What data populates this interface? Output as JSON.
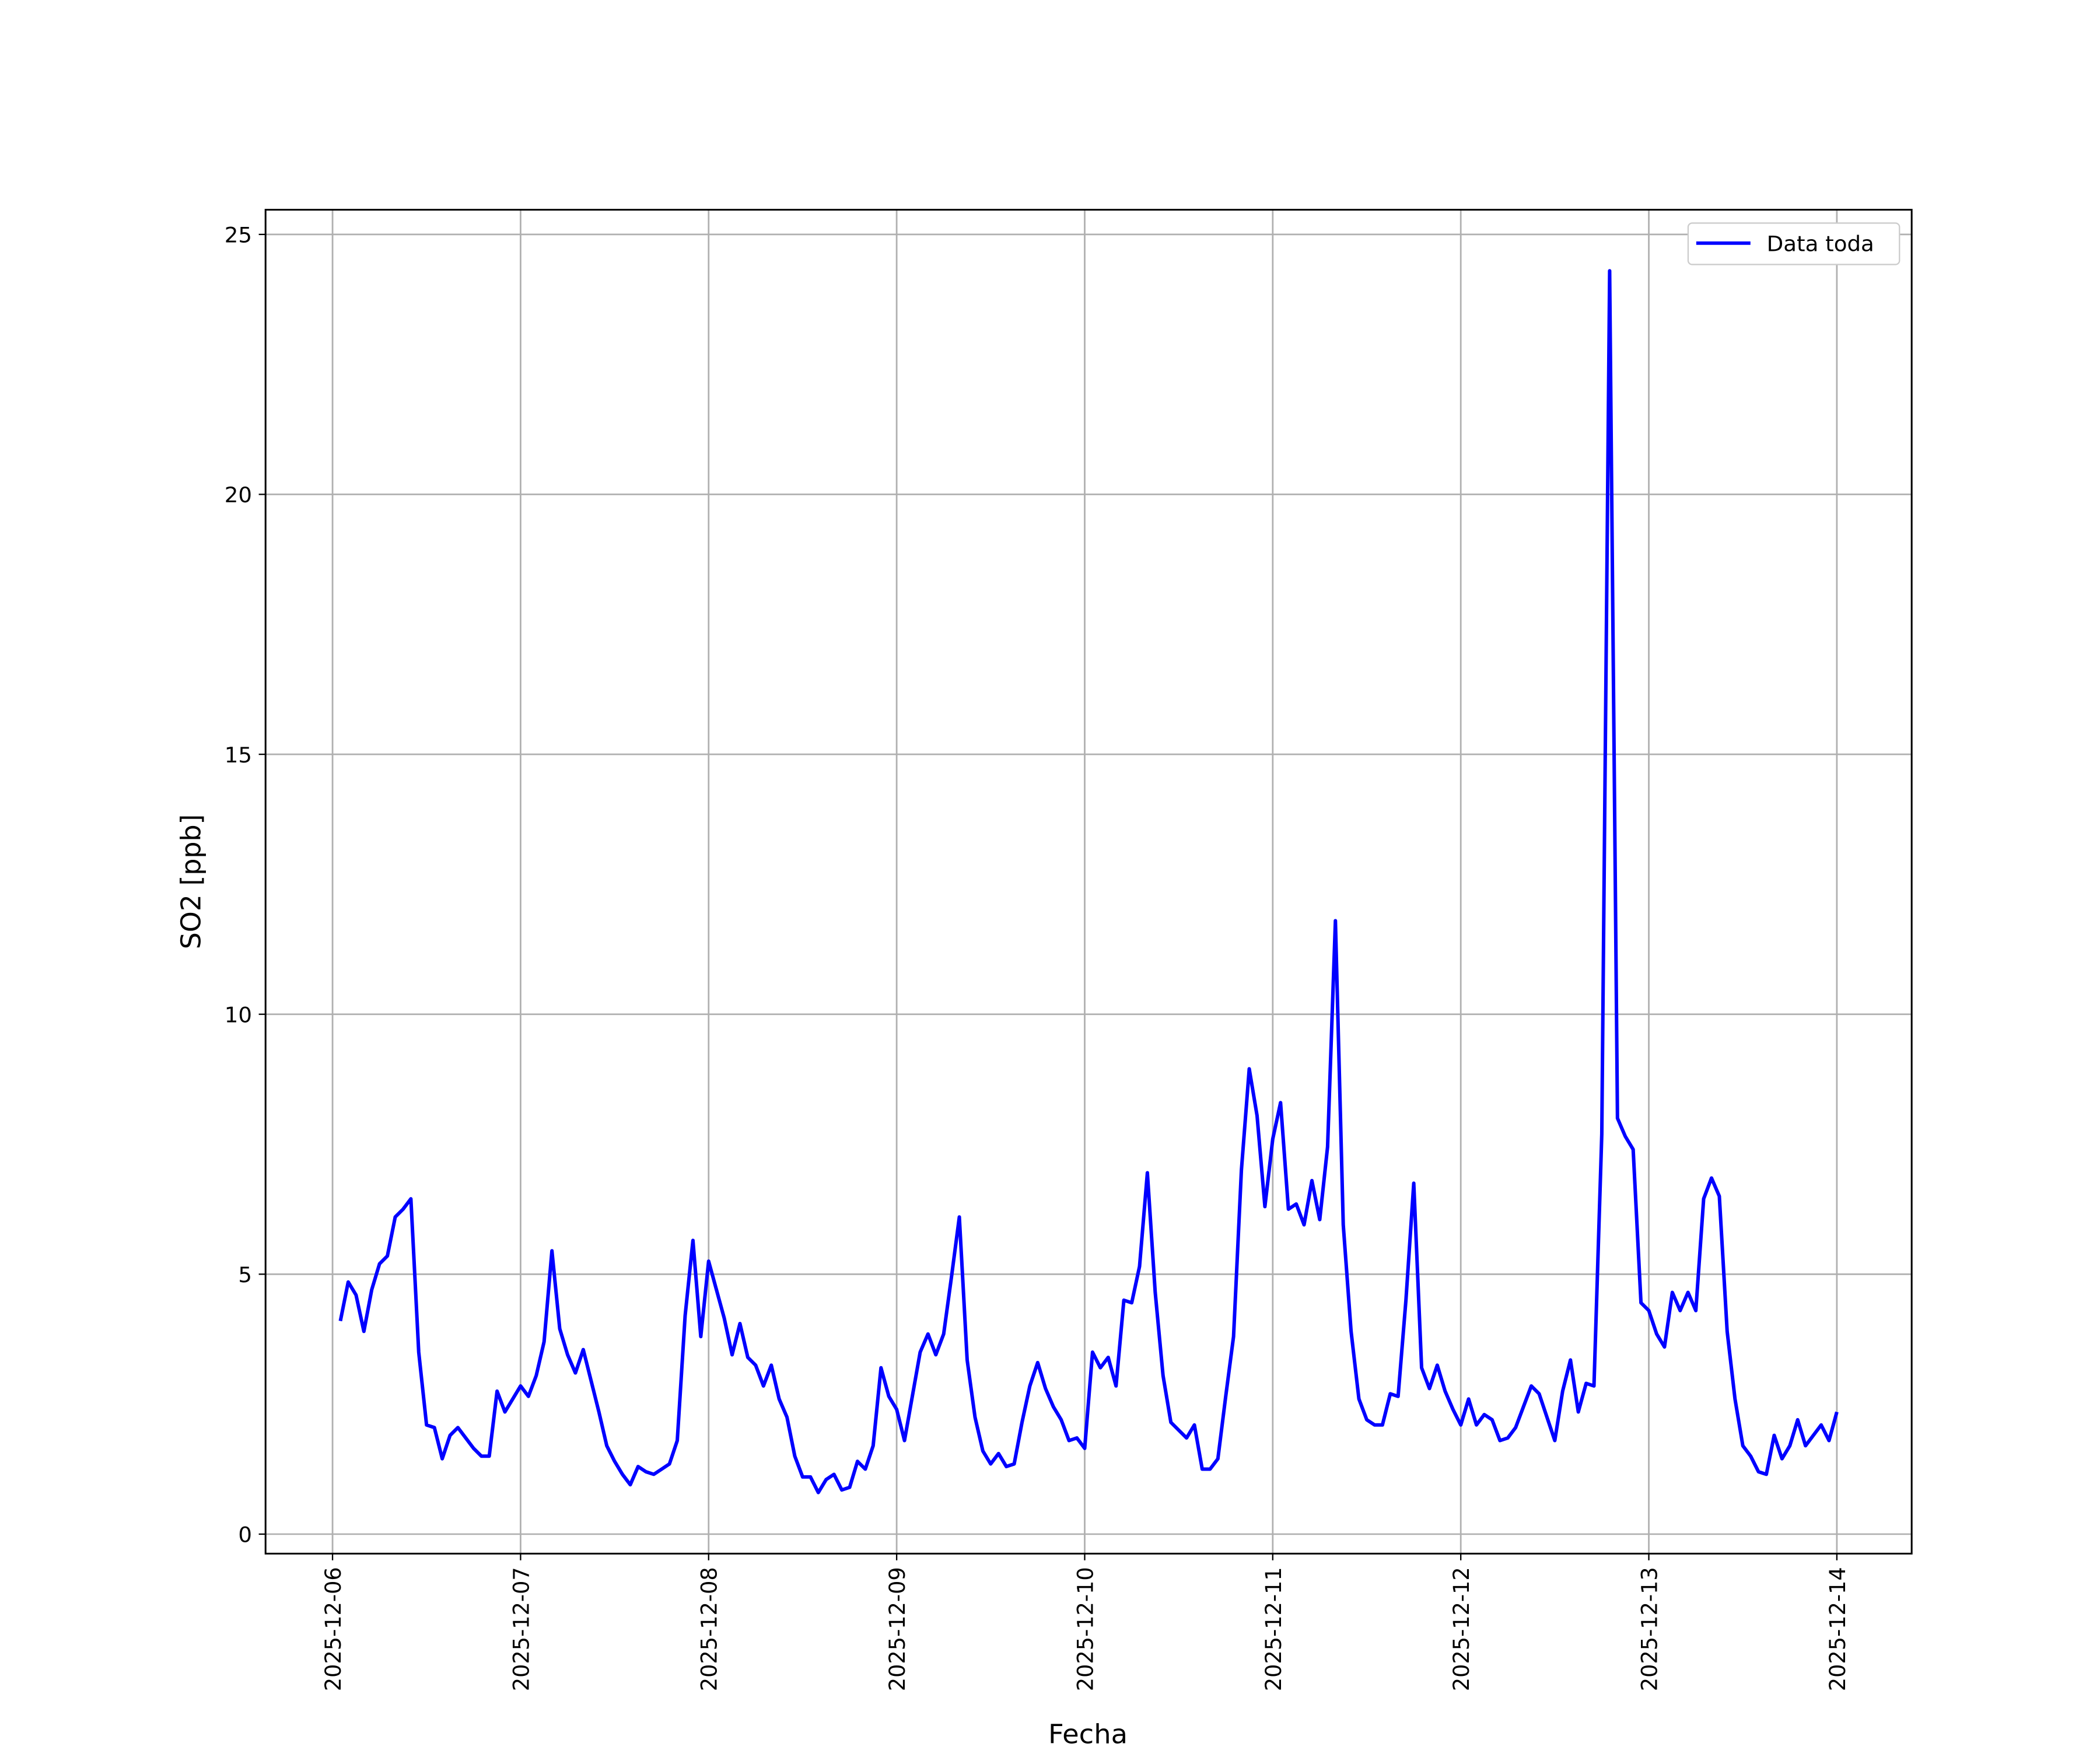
{
  "chart_data": {
    "type": "line",
    "xlabel": "Fecha",
    "ylabel": "SO2 [ppb]",
    "x": [
      "2025-12-06T01:00",
      "2025-12-06T02:00",
      "2025-12-06T03:00",
      "2025-12-06T04:00",
      "2025-12-06T05:00",
      "2025-12-06T06:00",
      "2025-12-06T07:00",
      "2025-12-06T08:00",
      "2025-12-06T09:00",
      "2025-12-06T10:00",
      "2025-12-06T11:00",
      "2025-12-06T12:00",
      "2025-12-06T13:00",
      "2025-12-06T14:00",
      "2025-12-06T15:00",
      "2025-12-06T16:00",
      "2025-12-06T17:00",
      "2025-12-06T18:00",
      "2025-12-06T19:00",
      "2025-12-06T20:00",
      "2025-12-06T21:00",
      "2025-12-06T22:00",
      "2025-12-06T23:00",
      "2025-12-07T00:00",
      "2025-12-07T01:00",
      "2025-12-07T02:00",
      "2025-12-07T03:00",
      "2025-12-07T04:00",
      "2025-12-07T05:00",
      "2025-12-07T06:00",
      "2025-12-07T07:00",
      "2025-12-07T08:00",
      "2025-12-07T09:00",
      "2025-12-07T10:00",
      "2025-12-07T11:00",
      "2025-12-07T12:00",
      "2025-12-07T13:00",
      "2025-12-07T14:00",
      "2025-12-07T15:00",
      "2025-12-07T16:00",
      "2025-12-07T17:00",
      "2025-12-07T18:00",
      "2025-12-07T19:00",
      "2025-12-07T20:00",
      "2025-12-07T21:00",
      "2025-12-07T22:00",
      "2025-12-07T23:00",
      "2025-12-08T00:00",
      "2025-12-08T01:00",
      "2025-12-08T02:00",
      "2025-12-08T03:00",
      "2025-12-08T04:00",
      "2025-12-08T05:00",
      "2025-12-08T06:00",
      "2025-12-08T07:00",
      "2025-12-08T08:00",
      "2025-12-08T09:00",
      "2025-12-08T10:00",
      "2025-12-08T11:00",
      "2025-12-08T12:00",
      "2025-12-08T13:00",
      "2025-12-08T14:00",
      "2025-12-08T15:00",
      "2025-12-08T16:00",
      "2025-12-08T17:00",
      "2025-12-08T18:00",
      "2025-12-08T19:00",
      "2025-12-08T20:00",
      "2025-12-08T21:00",
      "2025-12-08T22:00",
      "2025-12-08T23:00",
      "2025-12-09T00:00",
      "2025-12-09T01:00",
      "2025-12-09T02:00",
      "2025-12-09T03:00",
      "2025-12-09T04:00",
      "2025-12-09T05:00",
      "2025-12-09T06:00",
      "2025-12-09T07:00",
      "2025-12-09T08:00",
      "2025-12-09T09:00",
      "2025-12-09T10:00",
      "2025-12-09T11:00",
      "2025-12-09T12:00",
      "2025-12-09T13:00",
      "2025-12-09T14:00",
      "2025-12-09T15:00",
      "2025-12-09T16:00",
      "2025-12-09T17:00",
      "2025-12-09T18:00",
      "2025-12-09T19:00",
      "2025-12-09T20:00",
      "2025-12-09T21:00",
      "2025-12-09T22:00",
      "2025-12-09T23:00",
      "2025-12-10T00:00",
      "2025-12-10T01:00",
      "2025-12-10T02:00",
      "2025-12-10T03:00",
      "2025-12-10T04:00",
      "2025-12-10T05:00",
      "2025-12-10T06:00",
      "2025-12-10T07:00",
      "2025-12-10T08:00",
      "2025-12-10T09:00",
      "2025-12-10T10:00",
      "2025-12-10T11:00",
      "2025-12-10T12:00",
      "2025-12-10T13:00",
      "2025-12-10T14:00",
      "2025-12-10T15:00",
      "2025-12-10T16:00",
      "2025-12-10T17:00",
      "2025-12-10T18:00",
      "2025-12-10T19:00",
      "2025-12-10T20:00",
      "2025-12-10T21:00",
      "2025-12-10T22:00",
      "2025-12-10T23:00",
      "2025-12-11T00:00",
      "2025-12-11T01:00",
      "2025-12-11T02:00",
      "2025-12-11T03:00",
      "2025-12-11T04:00",
      "2025-12-11T05:00",
      "2025-12-11T06:00",
      "2025-12-11T07:00",
      "2025-12-11T08:00",
      "2025-12-11T09:00",
      "2025-12-11T10:00",
      "2025-12-11T11:00",
      "2025-12-11T12:00",
      "2025-12-11T13:00",
      "2025-12-11T14:00",
      "2025-12-11T15:00",
      "2025-12-11T16:00",
      "2025-12-11T17:00",
      "2025-12-11T18:00",
      "2025-12-11T19:00",
      "2025-12-11T20:00",
      "2025-12-11T21:00",
      "2025-12-11T22:00",
      "2025-12-11T23:00",
      "2025-12-12T00:00",
      "2025-12-12T01:00",
      "2025-12-12T02:00",
      "2025-12-12T03:00",
      "2025-12-12T04:00",
      "2025-12-12T05:00",
      "2025-12-12T06:00",
      "2025-12-12T07:00",
      "2025-12-12T08:00",
      "2025-12-12T09:00",
      "2025-12-12T10:00",
      "2025-12-12T11:00",
      "2025-12-12T12:00",
      "2025-12-12T13:00",
      "2025-12-12T14:00",
      "2025-12-12T15:00",
      "2025-12-12T16:00",
      "2025-12-12T17:00",
      "2025-12-12T18:00",
      "2025-12-12T19:00",
      "2025-12-12T20:00",
      "2025-12-12T21:00",
      "2025-12-12T22:00",
      "2025-12-12T23:00",
      "2025-12-13T00:00",
      "2025-12-13T01:00",
      "2025-12-13T02:00",
      "2025-12-13T03:00",
      "2025-12-13T04:00",
      "2025-12-13T05:00",
      "2025-12-13T06:00",
      "2025-12-13T07:00",
      "2025-12-13T08:00",
      "2025-12-13T09:00",
      "2025-12-13T10:00",
      "2025-12-13T11:00",
      "2025-12-13T12:00",
      "2025-12-13T13:00",
      "2025-12-13T14:00",
      "2025-12-13T15:00",
      "2025-12-13T16:00",
      "2025-12-13T17:00",
      "2025-12-13T18:00",
      "2025-12-13T19:00",
      "2025-12-13T20:00",
      "2025-12-13T21:00",
      "2025-12-13T22:00",
      "2025-12-13T23:00",
      "2025-12-14T00:00"
    ],
    "series": [
      {
        "name": "Data toda",
        "color": "#0000ff",
        "values": [
          4.1,
          4.85,
          4.6,
          3.9,
          4.7,
          5.2,
          5.35,
          6.1,
          6.25,
          6.45,
          3.5,
          2.1,
          2.05,
          1.45,
          1.9,
          2.05,
          1.85,
          1.65,
          1.5,
          1.5,
          2.75,
          2.35,
          2.6,
          2.85,
          2.65,
          3.05,
          3.7,
          5.45,
          3.95,
          3.45,
          3.1,
          3.55,
          2.95,
          2.35,
          1.7,
          1.4,
          1.15,
          0.95,
          1.3,
          1.2,
          1.15,
          1.25,
          1.35,
          1.8,
          4.2,
          5.65,
          3.8,
          5.25,
          4.7,
          4.15,
          3.45,
          4.05,
          3.4,
          3.25,
          2.85,
          3.25,
          2.6,
          2.25,
          1.5,
          1.1,
          1.1,
          0.8,
          1.05,
          1.15,
          0.85,
          0.9,
          1.4,
          1.25,
          1.7,
          3.2,
          2.65,
          2.4,
          1.8,
          2.65,
          3.5,
          3.85,
          3.45,
          3.85,
          4.95,
          6.1,
          3.35,
          2.25,
          1.6,
          1.35,
          1.55,
          1.3,
          1.35,
          2.15,
          2.85,
          3.3,
          2.8,
          2.45,
          2.2,
          1.8,
          1.85,
          1.65,
          3.5,
          3.2,
          3.4,
          2.85,
          4.5,
          4.45,
          5.15,
          6.95,
          4.65,
          3.05,
          2.15,
          2.0,
          1.85,
          2.1,
          1.25,
          1.25,
          1.45,
          2.65,
          3.8,
          7.0,
          8.95,
          8.05,
          6.3,
          7.6,
          8.3,
          6.25,
          6.35,
          5.95,
          6.8,
          6.05,
          7.45,
          11.8,
          5.95,
          3.9,
          2.6,
          2.2,
          2.1,
          2.1,
          2.7,
          2.65,
          4.5,
          6.75,
          3.2,
          2.8,
          3.25,
          2.75,
          2.4,
          2.1,
          2.6,
          2.1,
          2.3,
          2.2,
          1.8,
          1.85,
          2.05,
          2.45,
          2.85,
          2.7,
          2.25,
          1.8,
          2.75,
          3.35,
          2.35,
          2.9,
          2.85,
          7.7,
          24.3,
          8.0,
          7.65,
          7.4,
          4.45,
          4.3,
          3.85,
          3.6,
          4.65,
          4.3,
          4.65,
          4.3,
          6.45,
          6.85,
          6.5,
          3.9,
          2.6,
          1.7,
          1.5,
          1.2,
          1.15,
          1.9,
          1.45,
          1.7,
          2.2,
          1.7,
          1.9,
          2.1,
          1.8,
          2.35
        ]
      }
    ],
    "xlim": [
      "2025-12-05T15:27",
      "2025-12-14T09:33"
    ],
    "xticks": [
      "2025-12-06",
      "2025-12-07",
      "2025-12-08",
      "2025-12-09",
      "2025-12-10",
      "2025-12-11",
      "2025-12-12",
      "2025-12-13",
      "2025-12-14"
    ],
    "ylim": [
      -0.375,
      25.475
    ],
    "yticks": [
      0,
      5,
      10,
      15,
      20,
      25
    ],
    "grid": true,
    "legend": "upper right"
  }
}
